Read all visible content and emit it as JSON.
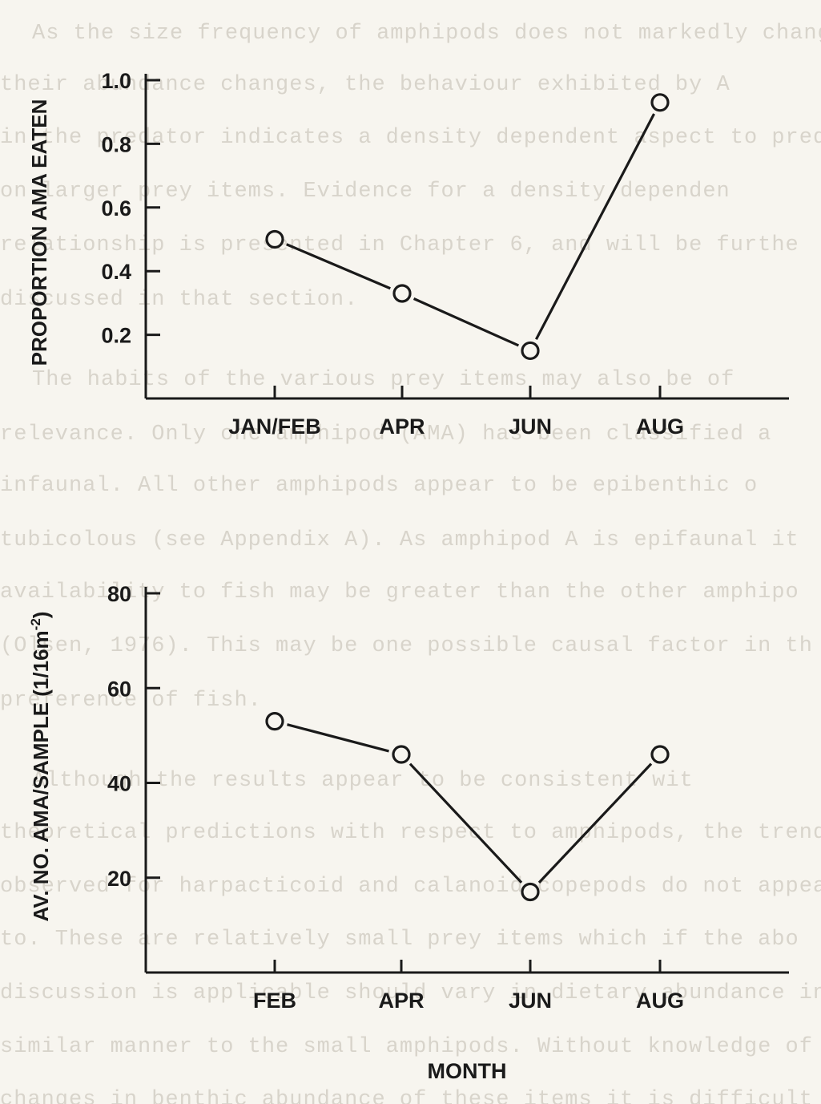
{
  "bleed_through": [
    "As the size frequency of amphipods does not markedly chang",
    "their abundance changes, the behaviour exhibited by A",
    "in the predator indicates a density dependent aspect to predatio",
    "on larger prey items. Evidence for a density dependen",
    "relationship is presented in Chapter 6, and will be furthe",
    "discussed in that section.",
    "The habits of the various prey items may also be of",
    "relevance. Only one amphipod (AMA) has been classified a",
    "infaunal. All other amphipods appear to be epibenthic o",
    "tubicolous (see Appendix A). As amphipod A is epifaunal it",
    "availability to fish may be greater than the other amphipo",
    "(Olsen, 1976). This may be one possible causal factor in th",
    "preference of fish.",
    "Although the results appear to be consistent wit",
    "theoretical predictions with respect to amphipods, the trend",
    "observed for harpacticoid and calanoid copepods do not appear",
    "to. These are relatively small prey items which if the abo",
    "discussion is applicable should vary in dietary abundance in",
    "similar manner to the small amphipods. Without knowledge of th",
    "changes in benthic abundance of these items it is difficult"
  ],
  "chart_data": [
    {
      "type": "line",
      "title": "",
      "xlabel": "",
      "ylabel": "PROPORTION AMA EATEN",
      "categories": [
        "JAN/FEB",
        "APR",
        "JUN",
        "AUG"
      ],
      "values": [
        0.5,
        0.33,
        0.15,
        0.93
      ],
      "yticks": [
        "0.2",
        "0.4",
        "0.6",
        "0.8",
        "1.0"
      ],
      "ytick_values": [
        0.2,
        0.4,
        0.6,
        0.8,
        1.0
      ],
      "ylim": [
        0,
        1.0
      ],
      "grid": false,
      "legend": "none",
      "marker": "open-circle"
    },
    {
      "type": "line",
      "title": "",
      "xlabel": "MONTH",
      "ylabel": "AV. NO. AMA/SAMPLE (1/16m",
      "ylabel_sup": "-2",
      "ylabel_close": ")",
      "categories": [
        "FEB",
        "APR",
        "JUN",
        "AUG"
      ],
      "values": [
        53,
        46,
        17,
        46
      ],
      "yticks": [
        "20",
        "40",
        "60",
        "80"
      ],
      "ytick_values": [
        20,
        40,
        60,
        80
      ],
      "ylim": [
        0,
        80
      ],
      "grid": false,
      "legend": "none",
      "marker": "open-circle"
    }
  ]
}
